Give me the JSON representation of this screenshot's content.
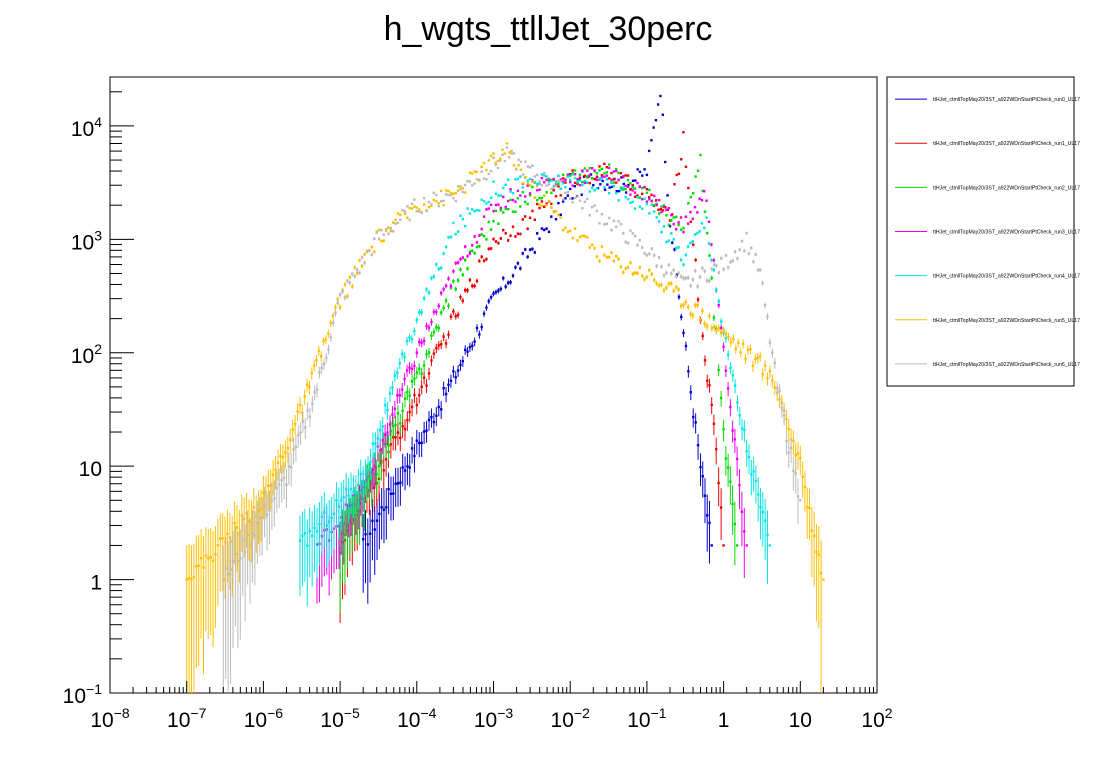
{
  "chart_data": {
    "type": "scatter",
    "title": "h_wgts_ttllJet_30perc",
    "xlabel": "",
    "ylabel": "",
    "x_scale": "log",
    "y_scale": "log",
    "xlim": [
      1e-08,
      100
    ],
    "ylim": [
      0.1,
      27000
    ],
    "grid": false,
    "legend_position": "right",
    "x_ticks": [
      {
        "value": 1e-08,
        "base": "10",
        "exp": "−8"
      },
      {
        "value": 1e-07,
        "base": "10",
        "exp": "−7"
      },
      {
        "value": 1e-06,
        "base": "10",
        "exp": "−6"
      },
      {
        "value": 1e-05,
        "base": "10",
        "exp": "−5"
      },
      {
        "value": 0.0001,
        "base": "10",
        "exp": "−4"
      },
      {
        "value": 0.001,
        "base": "10",
        "exp": "−3"
      },
      {
        "value": 0.01,
        "base": "10",
        "exp": "−2"
      },
      {
        "value": 0.1,
        "base": "10",
        "exp": "−1"
      },
      {
        "value": 1,
        "base": "1",
        "exp": ""
      },
      {
        "value": 10,
        "base": "10",
        "exp": ""
      },
      {
        "value": 100,
        "base": "10",
        "exp": "2"
      }
    ],
    "y_ticks": [
      {
        "value": 0.1,
        "base": "10",
        "exp": "−1"
      },
      {
        "value": 1,
        "base": "1",
        "exp": ""
      },
      {
        "value": 10,
        "base": "10",
        "exp": ""
      },
      {
        "value": 100,
        "base": "10",
        "exp": "2"
      },
      {
        "value": 1000,
        "base": "10",
        "exp": "3"
      },
      {
        "value": 10000,
        "base": "10",
        "exp": "4"
      }
    ],
    "series": [
      {
        "name": "ttHJet_ctmllTopMay20/3ST_a922WDnStartPtCheck_run0_UL17",
        "color": "#0000cc",
        "x": [
          2e-05,
          4e-05,
          0.0001,
          0.0003,
          0.001,
          0.003,
          0.01,
          0.02,
          0.05,
          0.1,
          0.15,
          0.2,
          0.3,
          0.5,
          0.7
        ],
        "y": [
          2,
          5,
          15,
          60,
          300,
          800,
          2500,
          3500,
          3000,
          4000,
          22000,
          1500,
          150,
          10,
          2
        ]
      },
      {
        "name": "ttHJet_ctmllTopMay20/3ST_a922WDnStartPtCheck_run1_UL17",
        "color": "#ee0000",
        "x": [
          1e-05,
          3e-05,
          0.0001,
          0.0003,
          0.001,
          0.003,
          0.01,
          0.03,
          0.1,
          0.2,
          0.3,
          0.5,
          0.8,
          1.0
        ],
        "y": [
          2,
          8,
          40,
          200,
          1000,
          1500,
          3500,
          4000,
          2500,
          1500,
          8000,
          200,
          15,
          2
        ]
      },
      {
        "name": "ttHJet_ctmllTopMay20/3ST_a922WDnStartPtCheck_run2_UL17",
        "color": "#00dd00",
        "x": [
          1e-05,
          3e-05,
          0.0001,
          0.0003,
          0.001,
          0.003,
          0.01,
          0.03,
          0.1,
          0.3,
          0.5,
          0.8,
          1.0,
          1.5
        ],
        "y": [
          2,
          10,
          60,
          400,
          1500,
          2500,
          3500,
          4000,
          2500,
          1200,
          5000,
          150,
          20,
          2
        ]
      },
      {
        "name": "ttHJet_ctmllTopMay20/3ST_a922WDnStartPtCheck_run3_UL17",
        "color": "#ee00ee",
        "x": [
          5e-06,
          2e-05,
          0.0001,
          0.0003,
          0.001,
          0.003,
          0.01,
          0.03,
          0.1,
          0.3,
          0.6,
          1.0,
          1.5,
          2.0
        ],
        "y": [
          2,
          6,
          100,
          500,
          2000,
          3000,
          3500,
          3800,
          2500,
          1300,
          2500,
          100,
          10,
          2
        ]
      },
      {
        "name": "ttHJet_ctmllTopMay20/3ST_a922WDnStartPtCheck_run4_UL17",
        "color": "#00e5e5",
        "x": [
          3e-06,
          2e-05,
          0.0001,
          0.0003,
          0.001,
          0.003,
          0.01,
          0.03,
          0.1,
          0.3,
          0.6,
          1.0,
          2.0,
          4.0
        ],
        "y": [
          2,
          8,
          200,
          1200,
          2800,
          3300,
          3200,
          3000,
          2000,
          700,
          1500,
          150,
          15,
          2
        ]
      },
      {
        "name": "ttHJet_ctmllTopMay20/3ST_a922WDnStartPtCheck_run5_UL17",
        "color": "#ffbf00",
        "x": [
          1e-07,
          1e-06,
          3e-06,
          1e-05,
          3e-05,
          0.0001,
          0.0003,
          0.001,
          0.0015,
          0.003,
          0.01,
          0.03,
          0.1,
          0.3,
          1.0,
          3.0,
          5.0,
          10,
          20
        ],
        "y": [
          1,
          5,
          30,
          300,
          1000,
          2000,
          2500,
          5000,
          6000,
          3000,
          1200,
          700,
          500,
          300,
          150,
          80,
          50,
          10,
          1
        ]
      },
      {
        "name": "ttHJet_ctmllTopMay20/3ST_a922WDnStartPtCheck_run6_UL17",
        "color": "#bbbbbb",
        "x": [
          3e-07,
          2e-06,
          5e-06,
          1e-05,
          3e-05,
          0.0001,
          0.0003,
          0.001,
          0.0015,
          0.003,
          0.01,
          0.03,
          0.1,
          0.3,
          1.0,
          2.0,
          3.0,
          5.0,
          10
        ],
        "y": [
          1,
          8,
          50,
          300,
          1000,
          2000,
          2500,
          4500,
          5500,
          4000,
          2500,
          1500,
          800,
          400,
          600,
          1000,
          500,
          50,
          5
        ]
      }
    ]
  }
}
